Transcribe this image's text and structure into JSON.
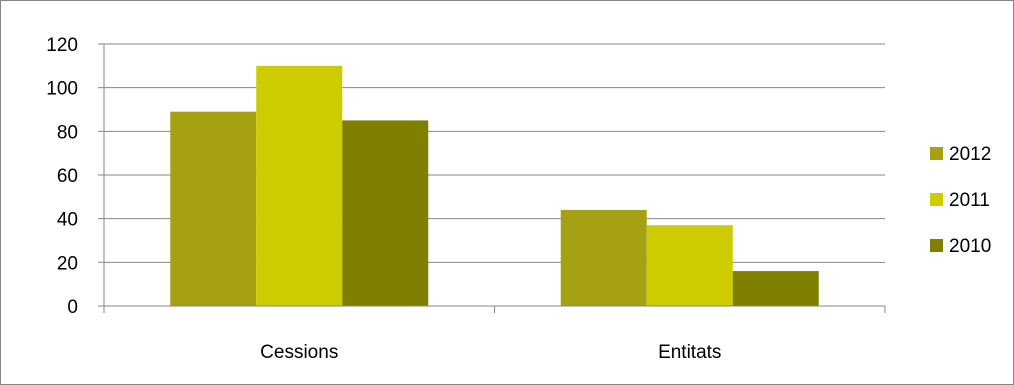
{
  "chart_data": {
    "type": "bar",
    "title": "",
    "xlabel": "",
    "ylabel": "",
    "categories": [
      "Cessions",
      "Entitats"
    ],
    "series": [
      {
        "name": "2012",
        "values": [
          89,
          44
        ],
        "color": "#a6a013"
      },
      {
        "name": "2011",
        "values": [
          110,
          37
        ],
        "color": "#cccc00"
      },
      {
        "name": "2010",
        "values": [
          85,
          16
        ],
        "color": "#808000"
      }
    ],
    "ylim": [
      0,
      120
    ],
    "yticks": [
      0,
      20,
      40,
      60,
      80,
      100,
      120
    ],
    "grid": true,
    "legend_position": "right"
  }
}
